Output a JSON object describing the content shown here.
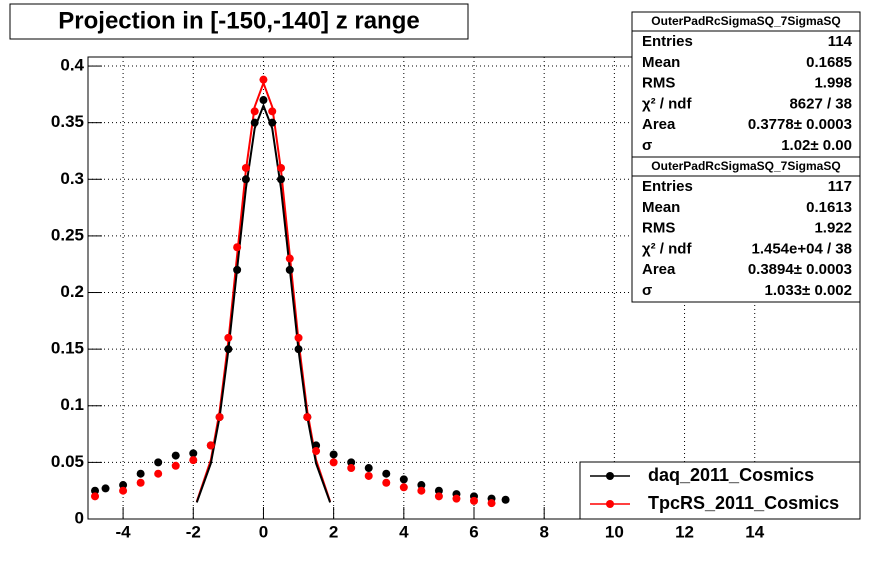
{
  "chart_data": {
    "type": "scatter",
    "title": "Projection in [-150,-140] z range",
    "xlim": [
      -5,
      17
    ],
    "ylim": [
      0,
      0.408
    ],
    "xticks": [
      -4,
      -2,
      0,
      2,
      4,
      6,
      8,
      10,
      12,
      14
    ],
    "yticks": [
      0,
      0.05,
      0.1,
      0.15,
      0.2,
      0.25,
      0.3,
      0.35,
      0.4
    ],
    "grid": true,
    "legend": "lower right",
    "series": [
      {
        "name": "daq_2011_Cosmics",
        "color": "#000000",
        "x": [
          -4.8,
          -4.5,
          -4,
          -3.5,
          -3,
          -2.5,
          -2,
          -1.5,
          -1.25,
          -1,
          -0.75,
          -0.5,
          -0.25,
          0,
          0.25,
          0.5,
          0.75,
          1,
          1.25,
          1.5,
          2,
          2.5,
          3,
          3.5,
          4,
          4.5,
          5,
          5.5,
          6,
          6.5,
          6.9
        ],
        "values": [
          0.025,
          0.027,
          0.03,
          0.04,
          0.05,
          0.056,
          0.058,
          0.065,
          0.09,
          0.15,
          0.22,
          0.3,
          0.35,
          0.37,
          0.35,
          0.3,
          0.22,
          0.15,
          0.09,
          0.065,
          0.057,
          0.05,
          0.045,
          0.04,
          0.035,
          0.03,
          0.025,
          0.022,
          0.02,
          0.018,
          0.017
        ]
      },
      {
        "name": "TpcRS_2011_Cosmics",
        "color": "#ff0000",
        "x": [
          -4.8,
          -4,
          -3.5,
          -3,
          -2.5,
          -2,
          -1.5,
          -1.25,
          -1,
          -0.75,
          -0.5,
          -0.25,
          0,
          0.25,
          0.5,
          0.75,
          1,
          1.25,
          1.5,
          2,
          2.5,
          3,
          3.5,
          4,
          4.5,
          5,
          5.5,
          6,
          6.5
        ],
        "values": [
          0.02,
          0.025,
          0.032,
          0.04,
          0.047,
          0.052,
          0.065,
          0.09,
          0.16,
          0.24,
          0.31,
          0.36,
          0.388,
          0.36,
          0.31,
          0.23,
          0.16,
          0.09,
          0.06,
          0.05,
          0.045,
          0.038,
          0.032,
          0.028,
          0.025,
          0.02,
          0.018,
          0.016,
          0.014
        ]
      }
    ],
    "fits": [
      {
        "color": "#ff0000",
        "x": [
          -1.9,
          -1.5,
          -1.25,
          -1,
          -0.75,
          -0.5,
          -0.25,
          0,
          0.25,
          0.5,
          0.75,
          1,
          1.25,
          1.5,
          1.9
        ],
        "values": [
          0.0154,
          0.052,
          0.095,
          0.157,
          0.233,
          0.308,
          0.364,
          0.385,
          0.364,
          0.308,
          0.233,
          0.157,
          0.095,
          0.052,
          0.0154
        ]
      },
      {
        "color": "#000000",
        "x": [
          -1.9,
          -1.5,
          -1.25,
          -1,
          -0.75,
          -0.5,
          -0.25,
          0,
          0.25,
          0.5,
          0.75,
          1,
          1.25,
          1.5,
          1.9
        ],
        "values": [
          0.0146,
          0.049,
          0.09,
          0.149,
          0.221,
          0.292,
          0.345,
          0.365,
          0.345,
          0.292,
          0.221,
          0.149,
          0.09,
          0.049,
          0.0146
        ]
      }
    ],
    "stats": [
      {
        "title": "OuterPadRcSigmaSQ_7SigmaSQ",
        "rows": [
          [
            "Entries",
            "114"
          ],
          [
            "Mean",
            "0.1685"
          ],
          [
            "RMS",
            "1.998"
          ],
          [
            "χ² / ndf",
            "8627 / 38"
          ],
          [
            "Area",
            "0.3778± 0.0003"
          ],
          [
            "σ",
            "1.02± 0.00"
          ]
        ]
      },
      {
        "title": "OuterPadRcSigmaSQ_7SigmaSQ",
        "rows": [
          [
            "Entries",
            "117"
          ],
          [
            "Mean",
            "0.1613"
          ],
          [
            "RMS",
            "1.922"
          ],
          [
            "χ² / ndf",
            "1.454e+04 / 38"
          ],
          [
            "Area",
            "0.3894± 0.0003"
          ],
          [
            "σ",
            "1.033± 0.002"
          ]
        ]
      }
    ]
  }
}
